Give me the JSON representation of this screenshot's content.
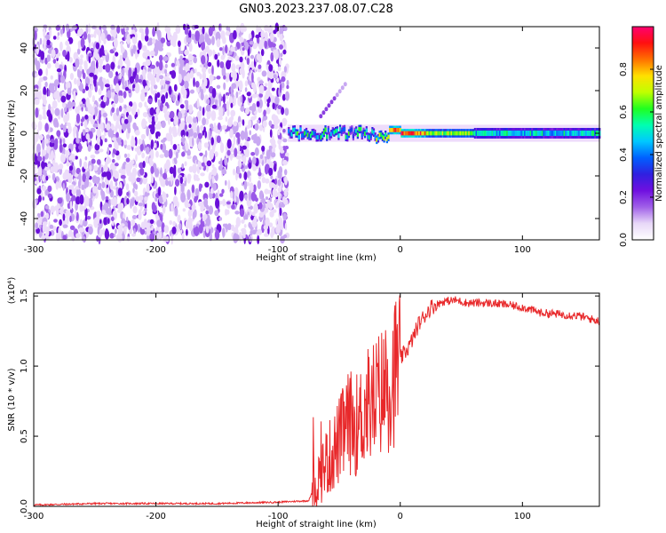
{
  "title": "GN03.2023.237.08.07.C28",
  "colorbar": {
    "label": "Normalized spectral amplitude",
    "ticks": [
      "0.0",
      "0.2",
      "0.4",
      "0.6",
      "0.8"
    ],
    "range": [
      0,
      1
    ],
    "colormap": [
      "#ffffff",
      "#e8d8f8",
      "#a060e8",
      "#7010e0",
      "#3020e0",
      "#0060ff",
      "#00c8ff",
      "#00ffb0",
      "#20ff20",
      "#c0ff00",
      "#ffe000",
      "#ff7000",
      "#ff1010",
      "#ff0070"
    ]
  },
  "chart_data": [
    {
      "type": "heatmap",
      "title": "GN03.2023.237.08.07.C28",
      "xlabel": "Height of straight line (km)",
      "ylabel": "Frequency (Hz)",
      "xlim": [
        -300,
        163
      ],
      "ylim": [
        -50,
        50
      ],
      "xticks": [
        -300,
        -200,
        -100,
        0,
        100
      ],
      "yticks": [
        -40,
        -20,
        0,
        20,
        40
      ],
      "description_regions": [
        {
          "x_range": [
            -300,
            -92
          ],
          "y_range": [
            -50,
            50
          ],
          "kind": "noise",
          "amplitude_range": [
            0.0,
            0.15
          ]
        },
        {
          "x_range": [
            -92,
            163
          ],
          "y_center": 0,
          "kind": "signal",
          "amplitude_range": [
            0.2,
            1.0
          ],
          "peak_x": 0
        }
      ],
      "streak": {
        "x": [
          -65,
          -45
        ],
        "y": [
          8,
          23
        ]
      }
    },
    {
      "type": "line",
      "xlabel": "Height of straight line (km)",
      "ylabel": "SNR (10 * v/v)",
      "y_multiplier": "(x10⁴)",
      "xlim": [
        -300,
        163
      ],
      "ylim": [
        0,
        1.52
      ],
      "xticks": [
        -300,
        -200,
        -100,
        0,
        100
      ],
      "yticks": [
        "0.0",
        "0.5",
        "1.0",
        "1.5"
      ],
      "color": "#e8282a",
      "series": [
        {
          "x": [
            -300,
            -250,
            -200,
            -150,
            -100,
            -75,
            -68,
            -62,
            -55,
            -48,
            -42,
            -35,
            -28,
            -22,
            -15,
            -8,
            0,
            8,
            15,
            25,
            35,
            45,
            55,
            70,
            85,
            100,
            115,
            130,
            145,
            163
          ],
          "y": [
            0.01,
            0.02,
            0.02,
            0.02,
            0.03,
            0.04,
            0.18,
            0.3,
            0.38,
            0.5,
            0.6,
            0.58,
            0.7,
            0.75,
            0.82,
            0.9,
            1.05,
            1.15,
            1.3,
            1.42,
            1.46,
            1.47,
            1.45,
            1.45,
            1.44,
            1.42,
            1.38,
            1.37,
            1.36,
            1.32
          ]
        }
      ]
    }
  ]
}
